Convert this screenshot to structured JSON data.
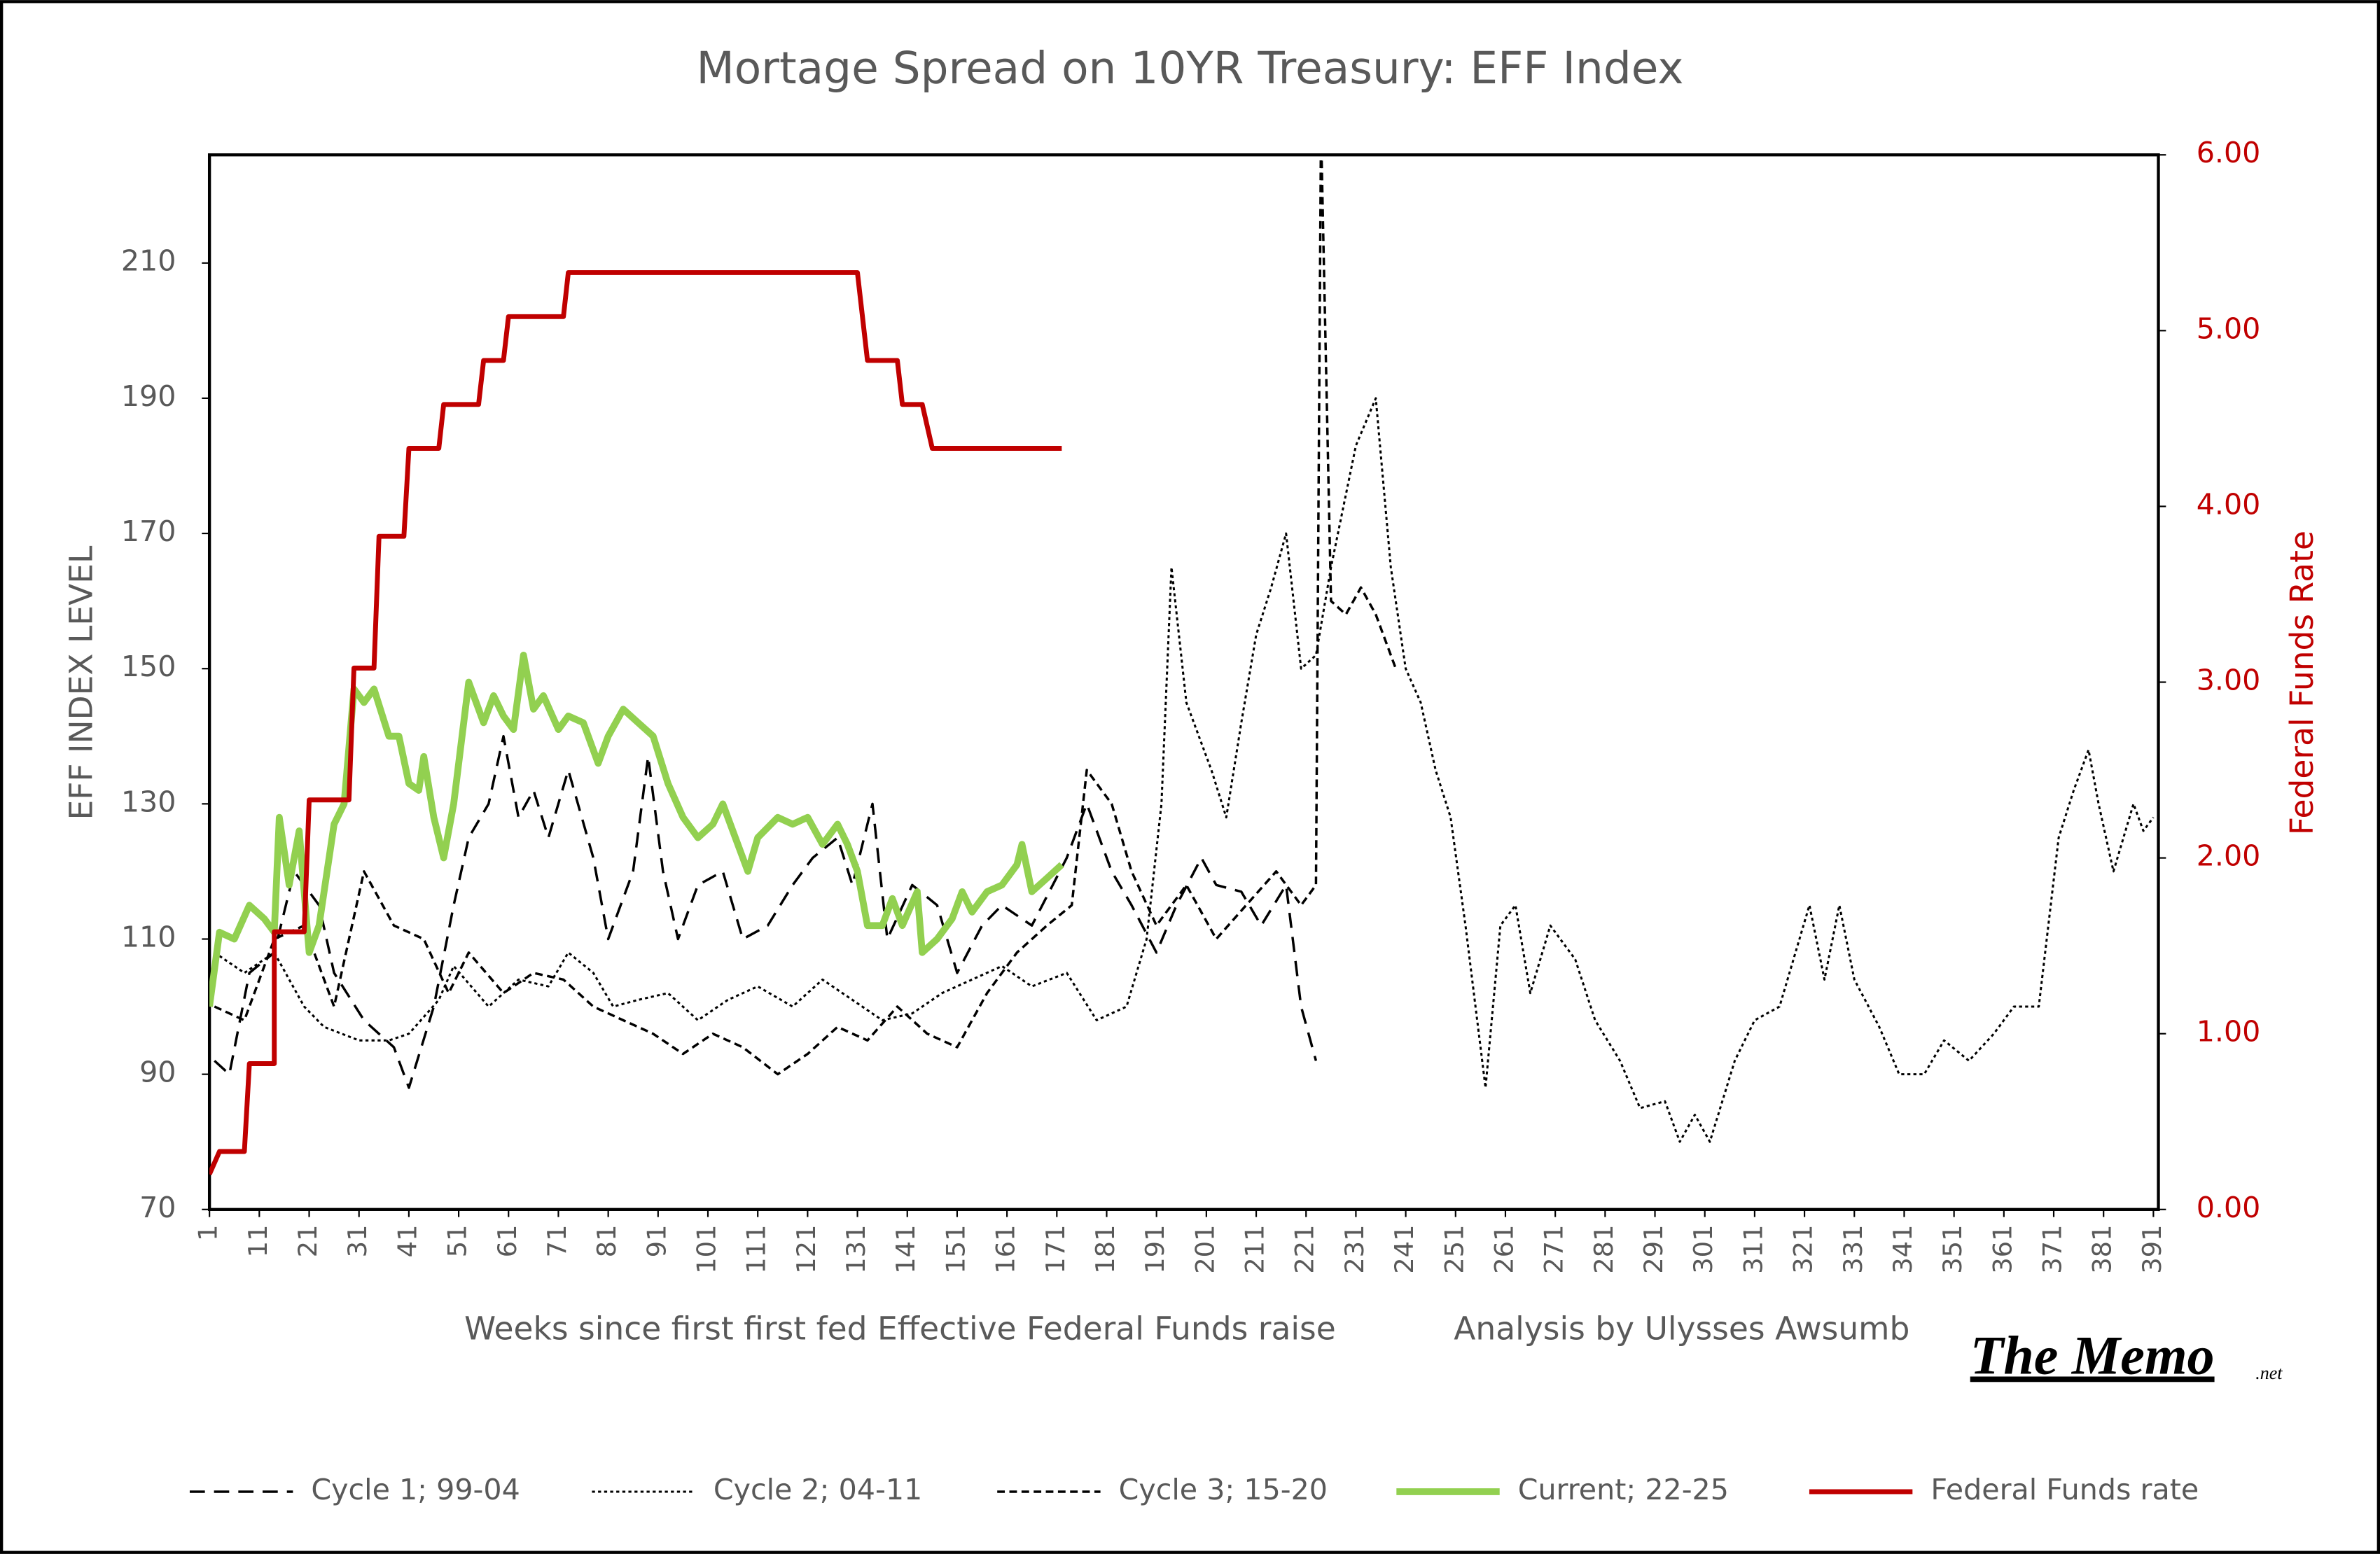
{
  "chart_data": {
    "type": "line",
    "title": "Mortage Spread on 10YR Treasury: EFF Index",
    "y_label": "EFF INDEX LEVEL",
    "y2_label": "Federal Funds Rate",
    "x_label": "Weeks since first first fed Effective Federal Funds raise",
    "annotation": "Analysis by Ulysses Awsumb",
    "logo": "The Memo",
    "logo_suffix": ".net",
    "xlim": [
      1,
      392
    ],
    "xticks": [
      1,
      11,
      21,
      31,
      41,
      51,
      61,
      71,
      81,
      91,
      101,
      111,
      121,
      131,
      141,
      151,
      161,
      171,
      181,
      191,
      201,
      211,
      221,
      231,
      241,
      251,
      261,
      271,
      281,
      291,
      301,
      311,
      321,
      331,
      341,
      351,
      361,
      371,
      381,
      391
    ],
    "ylim": [
      70,
      226
    ],
    "yticks": [
      70,
      90,
      110,
      130,
      150,
      170,
      190,
      210
    ],
    "y2lim": [
      0,
      6
    ],
    "y2ticks": [
      {
        "value": 0,
        "label": "0.00"
      },
      {
        "value": 1,
        "label": "1.00"
      },
      {
        "value": 2,
        "label": "2.00"
      },
      {
        "value": 3,
        "label": "3.00"
      },
      {
        "value": 4,
        "label": "4.00"
      },
      {
        "value": 5,
        "label": "5.00"
      },
      {
        "value": 6,
        "label": "6.00"
      }
    ],
    "legend": "bottom",
    "series": [
      {
        "name": "Cycle 1; 99-04",
        "color": "#000000",
        "dash": "long-dash",
        "width": 1.6,
        "x": [
          2,
          5,
          9,
          14,
          18,
          23,
          26,
          32,
          38,
          41,
          46,
          50,
          53,
          57,
          60,
          63,
          66,
          69,
          73,
          78,
          81,
          86,
          89,
          92,
          95,
          99,
          104,
          108,
          113,
          118,
          122,
          127,
          130,
          134,
          137,
          142,
          147,
          151,
          156,
          160,
          166,
          173,
          177,
          182,
          186,
          191,
          195,
          200,
          203,
          208,
          212,
          217,
          220,
          223
        ],
        "values": [
          92,
          90,
          105,
          108,
          120,
          115,
          105,
          98,
          94,
          88,
          100,
          115,
          125,
          130,
          140,
          128,
          132,
          125,
          135,
          122,
          110,
          120,
          137,
          120,
          110,
          118,
          120,
          110,
          112,
          118,
          122,
          125,
          118,
          130,
          110,
          118,
          115,
          105,
          112,
          115,
          112,
          122,
          130,
          120,
          115,
          108,
          115,
          122,
          118,
          117,
          112,
          118,
          100,
          92
        ]
      },
      {
        "name": "Cycle 2; 04-11",
        "color": "#000000",
        "dash": "dotted",
        "width": 1.4,
        "x": [
          2,
          8,
          14,
          20,
          24,
          31,
          37,
          41,
          47,
          50,
          57,
          63,
          69,
          73,
          78,
          82,
          87,
          93,
          99,
          105,
          111,
          118,
          124,
          130,
          136,
          142,
          148,
          154,
          160,
          166,
          173,
          179,
          185,
          189,
          192,
          194,
          197,
          202,
          205,
          208,
          211,
          214,
          217,
          220,
          223,
          226,
          231,
          235,
          238,
          241,
          244,
          247,
          250,
          253,
          257,
          260,
          263,
          266,
          270,
          275,
          279,
          284,
          288,
          293,
          296,
          299,
          302,
          307,
          311,
          316,
          322,
          325,
          328,
          331,
          336,
          340,
          345,
          349,
          354,
          359,
          363,
          368,
          372,
          375,
          378,
          380,
          383,
          387,
          389,
          391
        ],
        "values": [
          108,
          105,
          108,
          100,
          97,
          95,
          95,
          96,
          101,
          106,
          100,
          104,
          103,
          108,
          105,
          100,
          101,
          102,
          98,
          101,
          103,
          100,
          104,
          101,
          98,
          99,
          102,
          104,
          106,
          103,
          105,
          98,
          100,
          110,
          130,
          165,
          145,
          135,
          128,
          142,
          155,
          162,
          170,
          150,
          152,
          165,
          183,
          190,
          165,
          150,
          145,
          135,
          128,
          112,
          88,
          112,
          115,
          102,
          112,
          107,
          98,
          92,
          85,
          86,
          80,
          84,
          80,
          92,
          98,
          100,
          115,
          104,
          115,
          104,
          97,
          90,
          90,
          95,
          92,
          96,
          100,
          100,
          125,
          132,
          138,
          130,
          120,
          130,
          126,
          128
        ]
      },
      {
        "name": "Cycle 3; 15-20",
        "color": "#000000",
        "dash": "short-dash",
        "width": 1.6,
        "x": [
          2,
          8,
          14,
          20,
          26,
          32,
          38,
          44,
          49,
          53,
          60,
          66,
          72,
          78,
          84,
          90,
          96,
          102,
          108,
          115,
          121,
          127,
          133,
          139,
          145,
          151,
          157,
          163,
          169,
          174,
          177,
          182,
          186,
          191,
          197,
          203,
          209,
          215,
          220,
          223,
          224,
          226,
          229,
          232,
          235,
          239
        ],
        "values": [
          100,
          98,
          110,
          112,
          100,
          120,
          112,
          110,
          102,
          108,
          102,
          105,
          104,
          100,
          98,
          96,
          93,
          96,
          94,
          90,
          93,
          97,
          95,
          100,
          96,
          94,
          102,
          108,
          112,
          115,
          135,
          130,
          120,
          112,
          118,
          110,
          115,
          120,
          115,
          118,
          230,
          160,
          158,
          162,
          158,
          150
        ]
      },
      {
        "name": "Current; 22-25",
        "color": "#92d050",
        "dash": "solid",
        "width": 4.5,
        "x": [
          1,
          3,
          6,
          9,
          12,
          14,
          15,
          17,
          19,
          21,
          23,
          26,
          28,
          30,
          32,
          34,
          37,
          39,
          41,
          43,
          44,
          46,
          48,
          50,
          53,
          56,
          58,
          60,
          62,
          64,
          66,
          68,
          71,
          73,
          76,
          79,
          81,
          84,
          87,
          90,
          93,
          96,
          99,
          102,
          104,
          107,
          109,
          111,
          115,
          118,
          121,
          124,
          127,
          129,
          131,
          133,
          136,
          138,
          140,
          143,
          144,
          147,
          150,
          152,
          154,
          157,
          160,
          163,
          164,
          166,
          169,
          172
        ],
        "values": [
          100,
          111,
          110,
          115,
          113,
          111,
          128,
          118,
          126,
          108,
          112,
          127,
          130,
          147,
          145,
          147,
          140,
          140,
          133,
          132,
          137,
          128,
          122,
          130,
          148,
          142,
          146,
          143,
          141,
          152,
          144,
          146,
          141,
          143,
          142,
          136,
          140,
          144,
          142,
          140,
          133,
          128,
          125,
          127,
          130,
          124,
          120,
          125,
          128,
          127,
          128,
          124,
          127,
          124,
          120,
          112,
          112,
          116,
          112,
          117,
          108,
          110,
          113,
          117,
          114,
          117,
          118,
          121,
          124,
          117,
          119,
          121
        ]
      },
      {
        "name": "Federal Funds rate",
        "color": "#c00000",
        "dash": "solid",
        "width": 3.2,
        "axis": "y2",
        "x": [
          1,
          3,
          8,
          9,
          14,
          14,
          20,
          21,
          29,
          30,
          34,
          35,
          40,
          41,
          47,
          48,
          55,
          56,
          60,
          61,
          72,
          73,
          131,
          133,
          139,
          140,
          144,
          146,
          172
        ],
        "values": [
          0.2,
          0.33,
          0.33,
          0.83,
          0.83,
          1.58,
          1.58,
          2.33,
          2.33,
          3.08,
          3.08,
          3.83,
          3.83,
          4.33,
          4.33,
          4.58,
          4.58,
          4.83,
          4.83,
          5.08,
          5.08,
          5.33,
          5.33,
          4.83,
          4.83,
          4.58,
          4.58,
          4.33,
          4.33
        ]
      }
    ]
  }
}
